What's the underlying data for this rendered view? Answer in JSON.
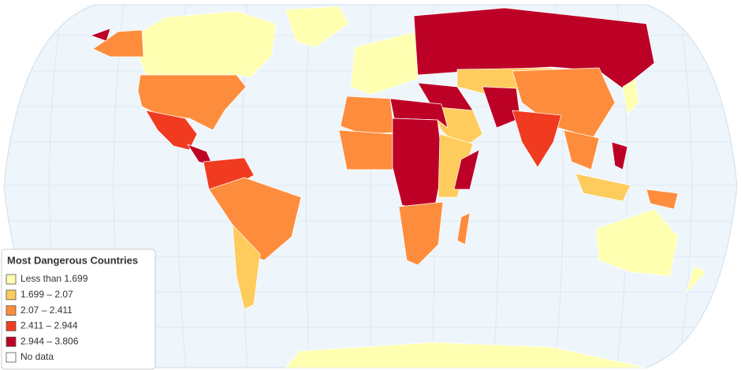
{
  "legend": {
    "title": "Most Dangerous Countries",
    "items": [
      {
        "label": "Less than 1.699",
        "color": "#ffffb2"
      },
      {
        "label": "1.699 – 2.07",
        "color": "#fecc5c"
      },
      {
        "label": "2.07 – 2.411",
        "color": "#fd8d3c"
      },
      {
        "label": "2.411 – 2.944",
        "color": "#f03b20"
      },
      {
        "label": "2.944 – 3.806",
        "color": "#bd0026"
      },
      {
        "label": "No data",
        "color": "#ffffff"
      }
    ]
  }
}
